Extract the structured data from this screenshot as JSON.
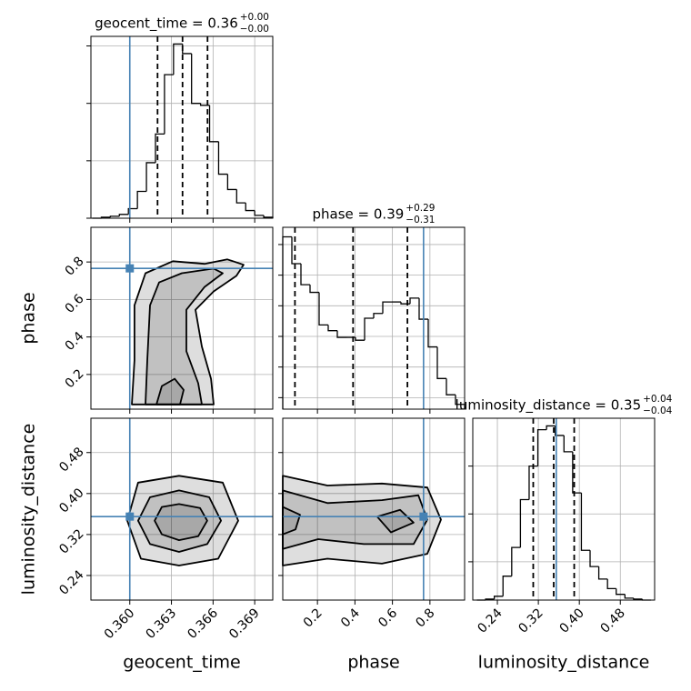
{
  "chart_data": {
    "type": "corner",
    "truth_color": "#4682b4",
    "grid": true,
    "parameters": [
      {
        "name": "geocent_time",
        "title": "geocent_time = 0.36",
        "title_plus": "+0.00",
        "title_minus": "−0.00",
        "truth": 0.36,
        "xlim": [
          0.3572,
          0.3703
        ],
        "xticks": [
          {
            "value": 0.36,
            "label": "0.360"
          },
          0.363,
          0.366,
          0.369
        ],
        "bins": [
          0.3573,
          0.35795,
          0.3586,
          0.35925,
          0.3599,
          0.36055,
          0.3612,
          0.36185,
          0.3625,
          0.36315,
          0.3638,
          0.36445,
          0.3651,
          0.36575,
          0.3664,
          0.36705,
          0.3677,
          0.36835,
          0.369,
          0.36965,
          0.3703
        ],
        "counts": [
          0,
          1,
          2,
          4,
          10,
          28,
          58,
          88,
          150,
          182,
          172,
          120,
          118,
          80,
          46,
          30,
          16,
          8,
          3,
          1
        ],
        "hist_ylim": [
          0,
          190
        ],
        "hist_yticks": [
          0,
          60,
          120,
          180
        ],
        "quantiles": [
          0.362,
          0.3638,
          0.3656
        ]
      },
      {
        "name": "phase",
        "title": "phase = 0.39",
        "title_plus": "+0.29",
        "title_minus": "−0.31",
        "truth": 0.766,
        "xlim": [
          0.015,
          0.985
        ],
        "xticks": [
          0.2,
          0.4,
          0.6,
          0.8
        ],
        "bins": [
          0.015,
          0.0635,
          0.112,
          0.1605,
          0.209,
          0.2575,
          0.306,
          0.3545,
          0.403,
          0.4515,
          0.5,
          0.5485,
          0.597,
          0.6455,
          0.694,
          0.7425,
          0.791,
          0.8395,
          0.888,
          0.9365,
          0.985
        ],
        "counts": [
          180,
          152,
          130,
          122,
          88,
          82,
          75,
          75,
          72,
          95,
          100,
          112,
          112,
          110,
          116,
          94,
          65,
          32,
          15,
          5
        ],
        "hist_ylim": [
          0,
          190
        ],
        "hist_yticks": [
          12,
          44,
          76,
          108,
          140,
          172
        ],
        "quantiles": [
          0.08,
          0.39,
          0.68
        ]
      },
      {
        "name": "luminosity_distance",
        "title": "luminosity_distance = 0.35",
        "title_plus": "+0.04",
        "title_minus": "−0.04",
        "truth": 0.355,
        "xlim": [
          0.192,
          0.547
        ],
        "xticks": [
          0.24,
          0.32,
          {
            "value": 0.4,
            "label": "0.40"
          },
          0.48
        ],
        "bins": [
          0.2,
          0.217,
          0.234,
          0.251,
          0.268,
          0.285,
          0.302,
          0.319,
          0.336,
          0.353,
          0.37,
          0.387,
          0.404,
          0.421,
          0.438,
          0.455,
          0.472,
          0.489,
          0.506,
          0.523,
          0.54
        ],
        "counts": [
          0,
          1,
          4,
          25,
          55,
          105,
          140,
          178,
          182,
          172,
          155,
          112,
          52,
          35,
          22,
          12,
          6,
          2,
          1,
          0
        ],
        "hist_ylim": [
          0,
          190
        ],
        "hist_yticks": [
          40,
          90,
          140
        ],
        "quantiles": [
          0.31,
          0.35,
          0.39
        ]
      }
    ],
    "pairs": [
      {
        "contours": [
          {
            "x": [
              0.36015,
              0.36034,
              0.36034,
              0.36113,
              0.3631,
              0.36539,
              0.36703,
              0.3682,
              0.36768,
              0.36604,
              0.36473,
              0.36519,
              0.36585,
              0.36604
            ],
            "y": [
              0.04,
              0.275,
              0.569,
              0.74,
              0.804,
              0.79,
              0.814,
              0.785,
              0.726,
              0.643,
              0.545,
              0.349,
              0.177,
              0.04
            ]
          },
          {
            "x": [
              0.36113,
              0.36126,
              0.36146,
              0.36211,
              0.36375,
              0.36604,
              0.3667,
              0.36539,
              0.36408,
              0.36408,
              0.36493,
              0.36519
            ],
            "y": [
              0.04,
              0.275,
              0.569,
              0.691,
              0.74,
              0.765,
              0.74,
              0.667,
              0.545,
              0.324,
              0.153,
              0.04
            ]
          },
          {
            "x": [
              0.36192,
              0.36231,
              0.36323,
              0.36388,
              0.36362
            ],
            "y": [
              0.04,
              0.138,
              0.177,
              0.118,
              0.04
            ]
          }
        ]
      },
      {
        "contours": [
          {
            "x": [
              0.36355,
              0.3667,
              0.36781,
              0.36637,
              0.36355,
              0.3608,
              0.35982,
              0.3606,
              0.36355
            ],
            "y": [
              0.4347,
              0.4214,
              0.347,
              0.2728,
              0.2594,
              0.2728,
              0.347,
              0.4214,
              0.4347
            ]
          },
          {
            "x": [
              0.36355,
              0.36572,
              0.36657,
              0.36558,
              0.36355,
              0.36146,
              0.3606,
              0.36146,
              0.36355
            ],
            "y": [
              0.4061,
              0.3928,
              0.347,
              0.3013,
              0.2861,
              0.3013,
              0.347,
              0.3928,
              0.4061
            ]
          },
          {
            "x": [
              0.36355,
              0.36506,
              0.36558,
              0.36493,
              0.36355,
              0.36231,
              0.36179,
              0.36231,
              0.36355
            ],
            "y": [
              0.3795,
              0.3718,
              0.347,
              0.3166,
              0.309,
              0.3204,
              0.347,
              0.3737,
              0.3795
            ]
          }
        ]
      },
      {
        "contours": [
          {
            "x": [
              0.015,
              0.253,
              0.544,
              0.786,
              0.859,
              0.786,
              0.544,
              0.253,
              0.015
            ],
            "y": [
              0.4347,
              0.4157,
              0.4195,
              0.4118,
              0.349,
              0.2823,
              0.2632,
              0.2728,
              0.2594
            ]
          },
          {
            "x": [
              0.015,
              0.253,
              0.544,
              0.738,
              0.786,
              0.713,
              0.447,
              0.204,
              0.015
            ],
            "y": [
              0.4061,
              0.3814,
              0.3871,
              0.3966,
              0.349,
              0.3013,
              0.3013,
              0.3109,
              0.2918
            ]
          },
          {
            "x": [
              0.015,
              0.107,
              0.083,
              0.015
            ],
            "y": [
              0.3737,
              0.3585,
              0.3299,
              0.3204
            ]
          },
          {
            "x": [
              0.519,
              0.641,
              0.713,
              0.592,
              0.519
            ],
            "y": [
              0.3547,
              0.368,
              0.3433,
              0.3242,
              0.3547
            ]
          }
        ]
      }
    ]
  }
}
